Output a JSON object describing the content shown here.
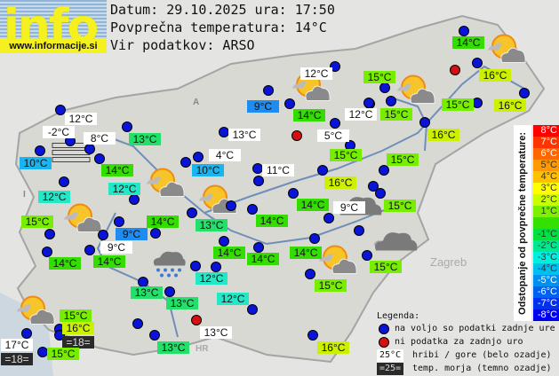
{
  "logo": {
    "word": "info",
    "url": "www.informacije.si"
  },
  "header": {
    "date_line": "Datum: 29.10.2025 ura: 17:50",
    "avg_line": "Povprečna temperatura: 14°C",
    "source_line": "Vir podatkov: ARSO"
  },
  "map_text": {
    "zagreb": "Zagreb",
    "hr": "HR",
    "a": "A",
    "i": "I"
  },
  "colors": {
    "mountain": "#ffffff",
    "sea": "#2a2a2a",
    "available_dot": "#0a14d8",
    "no_data_dot": "#d41010"
  },
  "stations": [
    {
      "temp": "12°C",
      "bg": "#ffffff"
    },
    {
      "temp": "-2°C",
      "bg": "#ffffff"
    },
    {
      "temp": "8°C",
      "bg": "#ffffff"
    },
    {
      "temp": "13°C",
      "bg": "#22e06a"
    },
    {
      "temp": "10°C",
      "bg": "#1ab4ee"
    },
    {
      "temp": "14°C",
      "bg": "#33dd00"
    },
    {
      "temp": "12°C",
      "bg": "#22e8c8"
    },
    {
      "temp": "12°C",
      "bg": "#22e8c8"
    },
    {
      "temp": "15°C",
      "bg": "#77ee00"
    },
    {
      "temp": "14°C",
      "bg": "#33dd00"
    },
    {
      "temp": "9°C",
      "bg": "#1e8cf0"
    },
    {
      "temp": "9°C",
      "bg": "#ffffff"
    },
    {
      "temp": "14°C",
      "bg": "#33dd00"
    },
    {
      "temp": "14°C",
      "bg": "#33dd00"
    },
    {
      "temp": "13°C",
      "bg": "#22e06a"
    },
    {
      "temp": "13°C",
      "bg": "#22e06a"
    },
    {
      "temp": "15°C",
      "bg": "#77ee00"
    },
    {
      "temp": "16°C",
      "bg": "#ccf000"
    },
    {
      "temp": "=18=",
      "bg": "#2a2a2a"
    },
    {
      "temp": "17°C",
      "bg": "#ffffff"
    },
    {
      "temp": "=18=",
      "bg": "#2a2a2a"
    },
    {
      "temp": "15°C",
      "bg": "#77ee00"
    },
    {
      "temp": "13°C",
      "bg": "#22e06a"
    },
    {
      "temp": "12°C",
      "bg": "#22e8c8"
    },
    {
      "temp": "12°C",
      "bg": "#22e8c8"
    },
    {
      "temp": "13°C",
      "bg": "#ffffff"
    },
    {
      "temp": "16°C",
      "bg": "#ccf000"
    },
    {
      "temp": "14°C",
      "bg": "#33dd00"
    },
    {
      "temp": "14°C",
      "bg": "#33dd00"
    },
    {
      "temp": "14°C",
      "bg": "#33dd00"
    },
    {
      "temp": "15°C",
      "bg": "#77ee00"
    },
    {
      "temp": "15°C",
      "bg": "#77ee00"
    },
    {
      "temp": "13°C",
      "bg": "#22e06a"
    },
    {
      "temp": "14°C",
      "bg": "#33dd00"
    },
    {
      "temp": "14°C",
      "bg": "#33dd00"
    },
    {
      "temp": "9°C",
      "bg": "#ffffff"
    },
    {
      "temp": "15°C",
      "bg": "#77ee00"
    },
    {
      "temp": "10°C",
      "bg": "#1ab4ee"
    },
    {
      "temp": "4°C",
      "bg": "#ffffff"
    },
    {
      "temp": "11°C",
      "bg": "#ffffff"
    },
    {
      "temp": "16°C",
      "bg": "#ccf000"
    },
    {
      "temp": "13°C",
      "bg": "#ffffff"
    },
    {
      "temp": "9°C",
      "bg": "#1e8cf0"
    },
    {
      "temp": "12°C",
      "bg": "#ffffff"
    },
    {
      "temp": "14°C",
      "bg": "#33dd00"
    },
    {
      "temp": "5°C",
      "bg": "#ffffff"
    },
    {
      "temp": "15°C",
      "bg": "#77ee00"
    },
    {
      "temp": "12°C",
      "bg": "#ffffff"
    },
    {
      "temp": "15°C",
      "bg": "#77ee00"
    },
    {
      "temp": "15°C",
      "bg": "#77ee00"
    },
    {
      "temp": "16°C",
      "bg": "#ccf000"
    },
    {
      "temp": "15°C",
      "bg": "#77ee00"
    },
    {
      "temp": "14°C",
      "bg": "#33dd00"
    },
    {
      "temp": "16°C",
      "bg": "#ccf000"
    },
    {
      "temp": "15°C",
      "bg": "#77ee00"
    },
    {
      "temp": "16°C",
      "bg": "#ccf000"
    }
  ],
  "dots": [
    "ok",
    "ok",
    "ok",
    "ok",
    "ok",
    "ok",
    "ok",
    "ok",
    "ok",
    "ok",
    "ok",
    "ok",
    "ok",
    "ok",
    "ok",
    "ok",
    "ok",
    "ok",
    "ok",
    "ok",
    "ok",
    "ok",
    "nodata",
    "ok",
    "ok",
    "ok",
    "ok",
    "ok",
    "ok",
    "ok",
    "ok",
    "ok",
    "ok",
    "nodata",
    "ok",
    "ok",
    "ok",
    "ok",
    "ok",
    "ok",
    "ok",
    "ok",
    "ok",
    "ok",
    "ok",
    "ok",
    "ok",
    "ok",
    "ok",
    "ok",
    "ok",
    "ok",
    "ok",
    "ok",
    "ok",
    "nodata",
    "ok",
    "ok",
    "ok",
    "ok",
    "ok",
    "ok",
    "ok"
  ],
  "weather_icons": [
    "partly-cloudy",
    "partly-cloudy",
    "partly-cloudy",
    "partly-cloudy",
    "partly-cloudy",
    "partly-cloudy",
    "partly-cloudy",
    "partly-cloudy",
    "overcast",
    "overcast",
    "fog",
    "rain"
  ],
  "scale": {
    "title": "Odstopanje od povprečne temperature:",
    "items": [
      {
        "label": "8°C",
        "color": "#ff0000"
      },
      {
        "label": "7°C",
        "color": "#ff3300"
      },
      {
        "label": "6°C",
        "color": "#ff6600"
      },
      {
        "label": "5°C",
        "color": "#ff9900"
      },
      {
        "label": "4°C",
        "color": "#ffc000"
      },
      {
        "label": "3°C",
        "color": "#ffff00"
      },
      {
        "label": "2°C",
        "color": "#c8ff00"
      },
      {
        "label": "1°C",
        "color": "#7cf000"
      },
      {
        "label": "",
        "color": "#33e000"
      },
      {
        "label": "-1°C",
        "color": "#00e040"
      },
      {
        "label": "-2°C",
        "color": "#00e890"
      },
      {
        "label": "-3°C",
        "color": "#00f0e0"
      },
      {
        "label": "-4°C",
        "color": "#00c0f0"
      },
      {
        "label": "-5°C",
        "color": "#0090f0"
      },
      {
        "label": "-6°C",
        "color": "#0060f0"
      },
      {
        "label": "-7°C",
        "color": "#0030f0"
      },
      {
        "label": "-8°C",
        "color": "#0000f0"
      }
    ]
  },
  "legend": {
    "title": "Legenda:",
    "available": "na voljo so podatki zadnje ure",
    "no_data": "ni podatka za zadnjo uro",
    "mountain_sample": "25°C",
    "mountain_text": "hribi / gore (belo ozadje)",
    "sea_sample": "=25=",
    "sea_text": "temp. morja (temno ozadje)"
  }
}
